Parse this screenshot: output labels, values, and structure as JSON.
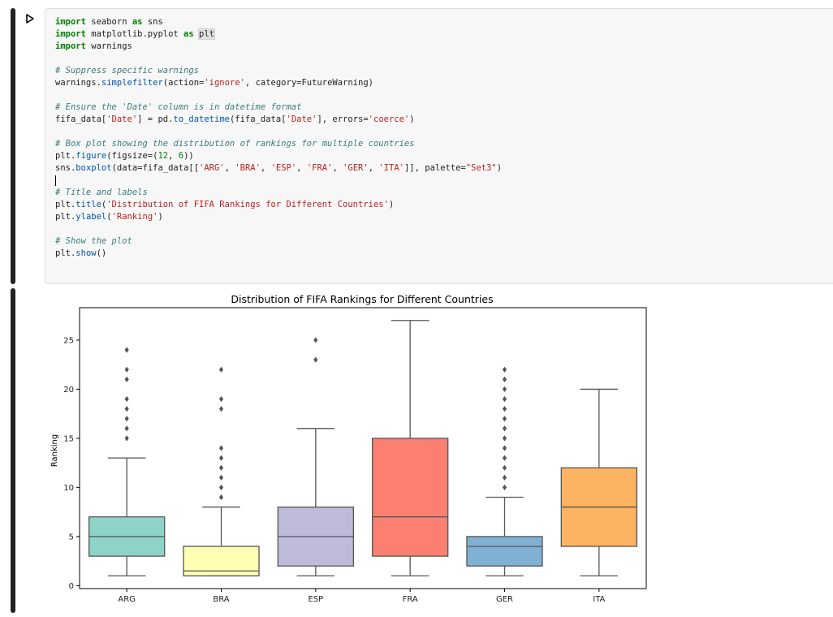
{
  "run_button_icon": "play-triangle-icon",
  "code_lines": [
    [
      {
        "t": "import",
        "c": "kw"
      },
      {
        "t": " seaborn "
      },
      {
        "t": "as",
        "c": "kw"
      },
      {
        "t": " sns"
      }
    ],
    [
      {
        "t": "import",
        "c": "kw"
      },
      {
        "t": " matplotlib.pyplot "
      },
      {
        "t": "as",
        "c": "kw"
      },
      {
        "t": " "
      },
      {
        "t": "plt",
        "c": "hl"
      }
    ],
    [
      {
        "t": "import",
        "c": "kw"
      },
      {
        "t": " warnings"
      }
    ],
    [],
    [
      {
        "t": "# Suppress specific warnings",
        "c": "cm"
      }
    ],
    [
      {
        "t": "warnings."
      },
      {
        "t": "simplefilter",
        "c": "fn"
      },
      {
        "t": "(action="
      },
      {
        "t": "'ignore'",
        "c": "st"
      },
      {
        "t": ", category=FutureWarning)"
      }
    ],
    [],
    [
      {
        "t": "# Ensure the 'Date' column is in datetime format",
        "c": "cm"
      }
    ],
    [
      {
        "t": "fifa_data["
      },
      {
        "t": "'Date'",
        "c": "st"
      },
      {
        "t": "] = pd."
      },
      {
        "t": "to_datetime",
        "c": "fn"
      },
      {
        "t": "(fifa_data["
      },
      {
        "t": "'Date'",
        "c": "st"
      },
      {
        "t": "], errors="
      },
      {
        "t": "'coerce'",
        "c": "st"
      },
      {
        "t": ")"
      }
    ],
    [],
    [
      {
        "t": "# Box plot showing the distribution of rankings for multiple countries",
        "c": "cm"
      }
    ],
    [
      {
        "t": "plt."
      },
      {
        "t": "figure",
        "c": "fn"
      },
      {
        "t": "(figsize=("
      },
      {
        "t": "12",
        "c": "nm"
      },
      {
        "t": ", "
      },
      {
        "t": "6",
        "c": "nm"
      },
      {
        "t": "))"
      }
    ],
    [
      {
        "t": "sns."
      },
      {
        "t": "boxplot",
        "c": "fn"
      },
      {
        "t": "(data=fifa_data[["
      },
      {
        "t": "'ARG'",
        "c": "st"
      },
      {
        "t": ", "
      },
      {
        "t": "'BRA'",
        "c": "st"
      },
      {
        "t": ", "
      },
      {
        "t": "'ESP'",
        "c": "st"
      },
      {
        "t": ", "
      },
      {
        "t": "'FRA'",
        "c": "st"
      },
      {
        "t": ", "
      },
      {
        "t": "'GER'",
        "c": "st"
      },
      {
        "t": ", "
      },
      {
        "t": "'ITA'",
        "c": "st"
      },
      {
        "t": "]], palette="
      },
      {
        "t": "\"Set3\"",
        "c": "st"
      },
      {
        "t": ")"
      }
    ],
    [
      {
        "t": "",
        "c": "cursor"
      }
    ],
    [
      {
        "t": "# Title and labels",
        "c": "cm"
      }
    ],
    [
      {
        "t": "plt."
      },
      {
        "t": "title",
        "c": "fn"
      },
      {
        "t": "("
      },
      {
        "t": "'Distribution of FIFA Rankings for Different Countries'",
        "c": "st"
      },
      {
        "t": ")"
      }
    ],
    [
      {
        "t": "plt."
      },
      {
        "t": "ylabel",
        "c": "fn"
      },
      {
        "t": "("
      },
      {
        "t": "'Ranking'",
        "c": "st"
      },
      {
        "t": ")"
      }
    ],
    [],
    [
      {
        "t": "# Show the plot",
        "c": "cm"
      }
    ],
    [
      {
        "t": "plt."
      },
      {
        "t": "show",
        "c": "fn"
      },
      {
        "t": "()"
      }
    ]
  ],
  "chart_data": {
    "type": "box",
    "title": "Distribution of FIFA Rankings for Different Countries",
    "xlabel": "",
    "ylabel": "Ranking",
    "ylim": [
      -0.3,
      28.3
    ],
    "yticks": [
      0,
      5,
      10,
      15,
      20,
      25
    ],
    "categories": [
      "ARG",
      "BRA",
      "ESP",
      "FRA",
      "GER",
      "ITA"
    ],
    "series": [
      {
        "category": "ARG",
        "color": "#8dd3c7",
        "whisker_low": 1,
        "q1": 3,
        "median": 5,
        "q3": 7,
        "whisker_high": 13,
        "outliers": [
          15,
          16,
          17,
          18,
          19,
          21,
          22,
          24
        ]
      },
      {
        "category": "BRA",
        "color": "#ffffb3",
        "whisker_low": 1,
        "q1": 1,
        "median": 1.5,
        "q3": 4,
        "whisker_high": 8,
        "outliers": [
          9,
          10,
          11,
          12,
          13,
          14,
          18,
          19,
          22
        ]
      },
      {
        "category": "ESP",
        "color": "#bebada",
        "whisker_low": 1,
        "q1": 2,
        "median": 5,
        "q3": 8,
        "whisker_high": 16,
        "outliers": [
          23,
          25
        ]
      },
      {
        "category": "FRA",
        "color": "#fb8072",
        "whisker_low": 1,
        "q1": 3,
        "median": 7,
        "q3": 15,
        "whisker_high": 27,
        "outliers": []
      },
      {
        "category": "GER",
        "color": "#80b1d3",
        "whisker_low": 1,
        "q1": 2,
        "median": 4,
        "q3": 5,
        "whisker_high": 9,
        "outliers": [
          10,
          11,
          12,
          13,
          14,
          15,
          16,
          17,
          18,
          19,
          20,
          21,
          22
        ]
      },
      {
        "category": "ITA",
        "color": "#fdb462",
        "whisker_low": 1,
        "q1": 4,
        "median": 8,
        "q3": 12,
        "whisker_high": 20,
        "outliers": []
      }
    ]
  }
}
